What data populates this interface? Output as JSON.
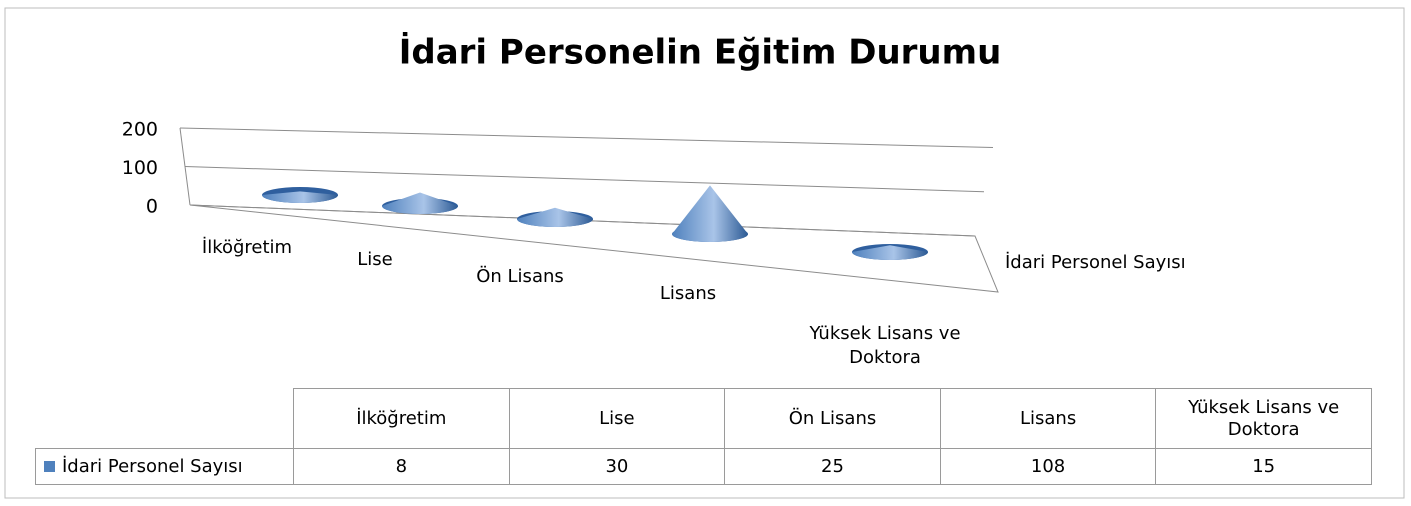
{
  "chart_data": {
    "type": "cone",
    "title": "İdari Personelin Eğitim Durumu",
    "categories": [
      "İlköğretim",
      "Lise",
      "Ön Lisans",
      "Lisans",
      "Yüksek Lisans ve Doktora"
    ],
    "series": [
      {
        "name": "İdari Personel Sayısı",
        "color": "#4f81bd",
        "values": [
          8,
          30,
          25,
          108,
          15
        ]
      }
    ],
    "ylim": [
      0,
      200
    ],
    "yticks": [
      0,
      100,
      200
    ],
    "grid": true
  }
}
